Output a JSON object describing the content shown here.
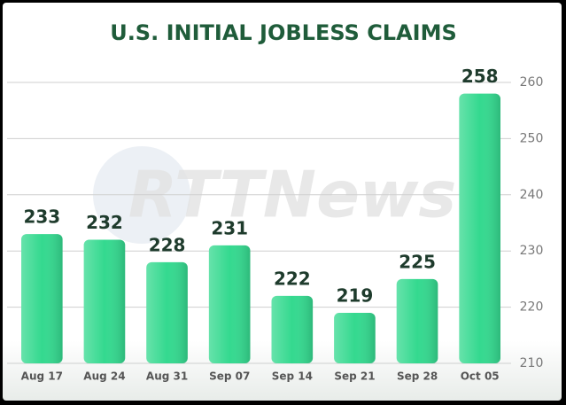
{
  "chart_data": {
    "type": "bar",
    "title": "U.S. INITIAL JOBLESS CLAIMS",
    "watermark": "RTTNews",
    "categories": [
      "Aug 17",
      "Aug 24",
      "Aug 31",
      "Sep 07",
      "Sep 14",
      "Sep 21",
      "Sep 28",
      "Oct 05"
    ],
    "values": [
      233,
      232,
      228,
      231,
      222,
      219,
      225,
      258
    ],
    "color": "#34d98f",
    "ylim": [
      210,
      260
    ],
    "yticks": [
      210,
      220,
      230,
      240,
      250,
      260
    ],
    "grid": true,
    "y_axis_side": "right"
  }
}
